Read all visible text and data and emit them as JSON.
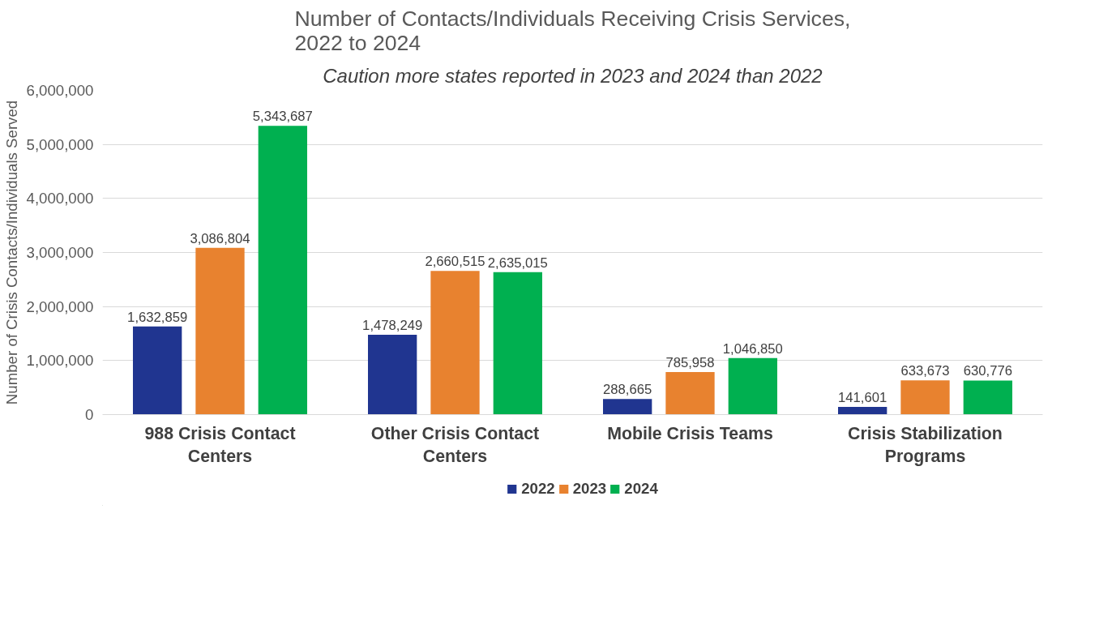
{
  "chart_data": {
    "type": "bar",
    "title": "Number of Contacts/Individuals Receiving Crisis Services, 2022 to 2024",
    "subtitle": "Caution more states reported in 2023 and 2024 than 2022",
    "ylabel": "Number of Crisis Contacts/Individuals Served",
    "categories": [
      "988 Crisis Contact Centers",
      "Other Crisis Contact Centers",
      "Mobile Crisis Teams",
      "Crisis Stabilization Programs"
    ],
    "series": [
      {
        "name": "2022",
        "color": "#203590",
        "values": [
          1632859,
          1478249,
          288665,
          141601
        ],
        "value_labels": [
          "1,632,859",
          "1,478,249",
          "288,665",
          "141,601"
        ]
      },
      {
        "name": "2023",
        "color": "#e8822f",
        "values": [
          3086804,
          2660515,
          785958,
          633673
        ],
        "value_labels": [
          "3,086,804",
          "2,660,515",
          "785,958",
          "633,673"
        ]
      },
      {
        "name": "2024",
        "color": "#00b050",
        "values": [
          5343687,
          2635015,
          1046850,
          630776
        ],
        "value_labels": [
          "5,343,687",
          "2,635,015",
          "1,046,850",
          "630,776"
        ]
      }
    ],
    "ylim": [
      0,
      6000000
    ],
    "yticks": [
      {
        "value": 0,
        "label": "0"
      },
      {
        "value": 1000000,
        "label": "1,000,000"
      },
      {
        "value": 2000000,
        "label": "2,000,000"
      },
      {
        "value": 3000000,
        "label": "3,000,000"
      },
      {
        "value": 4000000,
        "label": "4,000,000"
      },
      {
        "value": 5000000,
        "label": "5,000,000"
      },
      {
        "value": 6000000,
        "label": "6,000,000"
      }
    ],
    "grid": "y",
    "legend": "bottom"
  }
}
